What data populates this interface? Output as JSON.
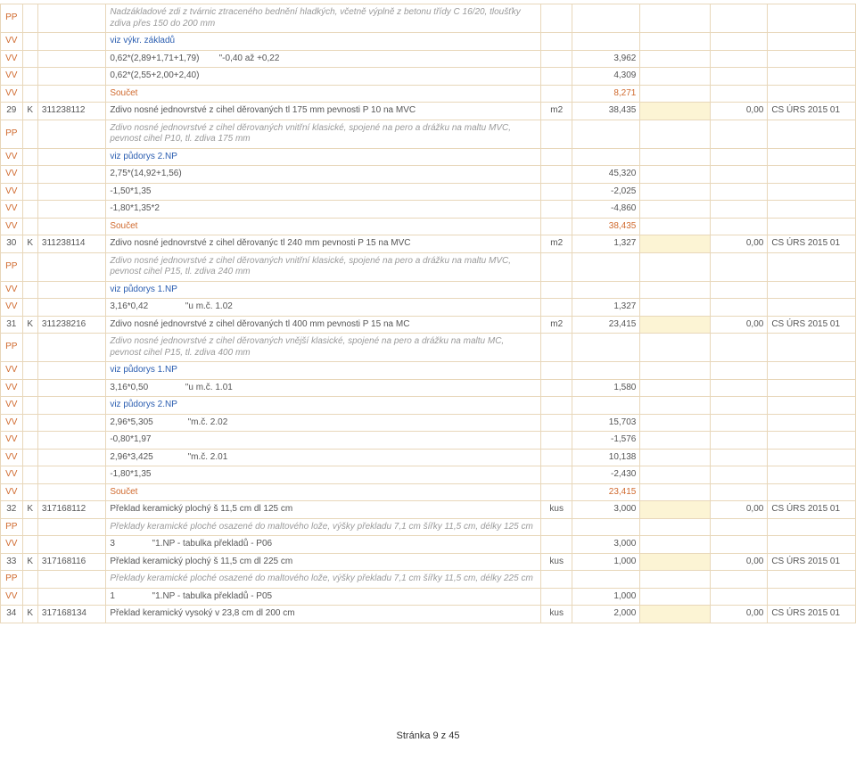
{
  "footer": "Stránka 9 z 45",
  "rows": [
    {
      "type": "pp",
      "c1": "PP",
      "c4": "Nadzákladové zdi z tvárnic ztraceného bednění hladkých, včetně výplně z betonu třídy C 16/20, tloušťky zdiva přes 150 do 200 mm"
    },
    {
      "type": "vv_blue",
      "c1": "VV",
      "c4": "viz výkr. základů"
    },
    {
      "type": "vv",
      "c1": "VV",
      "c4": "0,62*(2,89+1,71+1,79)        \"-0,40 až +0,22",
      "c6": "3,962"
    },
    {
      "type": "vv",
      "c1": "VV",
      "c4": "0,62*(2,55+2,00+2,40)",
      "c6": "4,309"
    },
    {
      "type": "vv_sum",
      "c1": "VV",
      "c4": "Součet",
      "c6": "8,271"
    },
    {
      "type": "main",
      "c1": "29",
      "c2": "K",
      "c3": "311238112",
      "c4": "Zdivo nosné jednovrstvé z cihel děrovaných tl 175 mm pevnosti P 10 na MVC",
      "c5": "m2",
      "c6": "38,435",
      "c8": "0,00",
      "c9": "CS ÚRS 2015 01"
    },
    {
      "type": "pp",
      "c1": "PP",
      "c4": "Zdivo nosné jednovrstvé z cihel děrovaných vnitřní klasické, spojené na pero a drážku na maltu MVC, pevnost cihel P10, tl. zdiva 175 mm"
    },
    {
      "type": "vv_blue",
      "c1": "VV",
      "c4": "viz půdorys 2.NP"
    },
    {
      "type": "vv",
      "c1": "VV",
      "c4": "2,75*(14,92+1,56)",
      "c6": "45,320"
    },
    {
      "type": "vv",
      "c1": "VV",
      "c4": "-1,50*1,35",
      "c6": "-2,025"
    },
    {
      "type": "vv",
      "c1": "VV",
      "c4": "-1,80*1,35*2",
      "c6": "-4,860"
    },
    {
      "type": "vv_sum",
      "c1": "VV",
      "c4": "Součet",
      "c6": "38,435"
    },
    {
      "type": "main",
      "c1": "30",
      "c2": "K",
      "c3": "311238114",
      "c4": "Zdivo nosné jednovrstvé z cihel děrovanýc tl 240 mm pevnosti P 15 na MVC",
      "c5": "m2",
      "c6": "1,327",
      "c8": "0,00",
      "c9": "CS ÚRS 2015 01"
    },
    {
      "type": "pp",
      "c1": "PP",
      "c4": "Zdivo nosné jednovrstvé z cihel děrovaných vnitřní klasické, spojené na pero a drážku na maltu MVC, pevnost cihel P15, tl. zdiva 240 mm"
    },
    {
      "type": "vv_blue",
      "c1": "VV",
      "c4": "viz půdorys 1.NP"
    },
    {
      "type": "vv",
      "c1": "VV",
      "c4": "3,16*0,42               \"u m.č. 1.02",
      "c6": "1,327"
    },
    {
      "type": "main",
      "c1": "31",
      "c2": "K",
      "c3": "311238216",
      "c4": "Zdivo nosné jednovrstvé z cihel děrovaných tl 400 mm pevnosti P 15 na MC",
      "c5": "m2",
      "c6": "23,415",
      "c8": "0,00",
      "c9": "CS ÚRS 2015 01"
    },
    {
      "type": "pp",
      "c1": "PP",
      "c4": "Zdivo nosné jednovrstvé z cihel děrovaných vnější klasické, spojené na pero a drážku na maltu MC, pevnost cihel P15, tl. zdiva 400 mm"
    },
    {
      "type": "vv_blue",
      "c1": "VV",
      "c4": "viz půdorys 1.NP"
    },
    {
      "type": "vv",
      "c1": "VV",
      "c4": "3,16*0,50               \"u m.č. 1.01",
      "c6": "1,580"
    },
    {
      "type": "vv_blue",
      "c1": "VV",
      "c4": "viz půdorys 2.NP"
    },
    {
      "type": "vv",
      "c1": "VV",
      "c4": "2,96*5,305              \"m.č. 2.02",
      "c6": "15,703"
    },
    {
      "type": "vv",
      "c1": "VV",
      "c4": "-0,80*1,97",
      "c6": "-1,576"
    },
    {
      "type": "vv",
      "c1": "VV",
      "c4": "2,96*3,425              \"m.č. 2.01",
      "c6": "10,138"
    },
    {
      "type": "vv",
      "c1": "VV",
      "c4": "-1,80*1,35",
      "c6": "-2,430"
    },
    {
      "type": "vv_sum",
      "c1": "VV",
      "c4": "Součet",
      "c6": "23,415"
    },
    {
      "type": "main",
      "c1": "32",
      "c2": "K",
      "c3": "317168112",
      "c4": "Překlad keramický plochý š 11,5 cm dl 125 cm",
      "c5": "kus",
      "c6": "3,000",
      "c8": "0,00",
      "c9": "CS ÚRS 2015 01"
    },
    {
      "type": "pp",
      "c1": "PP",
      "c4": "Překlady keramické ploché osazené do maltového lože, výšky překladu 7,1 cm šířky 11,5 cm, délky 125 cm"
    },
    {
      "type": "vv",
      "c1": "VV",
      "c4": "3               \"1.NP - tabulka překladů - P06",
      "c6": "3,000"
    },
    {
      "type": "main",
      "c1": "33",
      "c2": "K",
      "c3": "317168116",
      "c4": "Překlad keramický plochý š 11,5 cm dl 225 cm",
      "c5": "kus",
      "c6": "1,000",
      "c8": "0,00",
      "c9": "CS ÚRS 2015 01"
    },
    {
      "type": "pp",
      "c1": "PP",
      "c4": "Překlady keramické ploché osazené do maltového lože, výšky překladu 7,1 cm šířky 11,5 cm, délky 225 cm"
    },
    {
      "type": "vv",
      "c1": "VV",
      "c4": "1               \"1.NP - tabulka překladů - P05",
      "c6": "1,000"
    },
    {
      "type": "main",
      "c1": "34",
      "c2": "K",
      "c3": "317168134",
      "c4": "Překlad keramický vysoký v 23,8 cm dl 200 cm",
      "c5": "kus",
      "c6": "2,000",
      "c8": "0,00",
      "c9": "CS ÚRS 2015 01"
    }
  ]
}
